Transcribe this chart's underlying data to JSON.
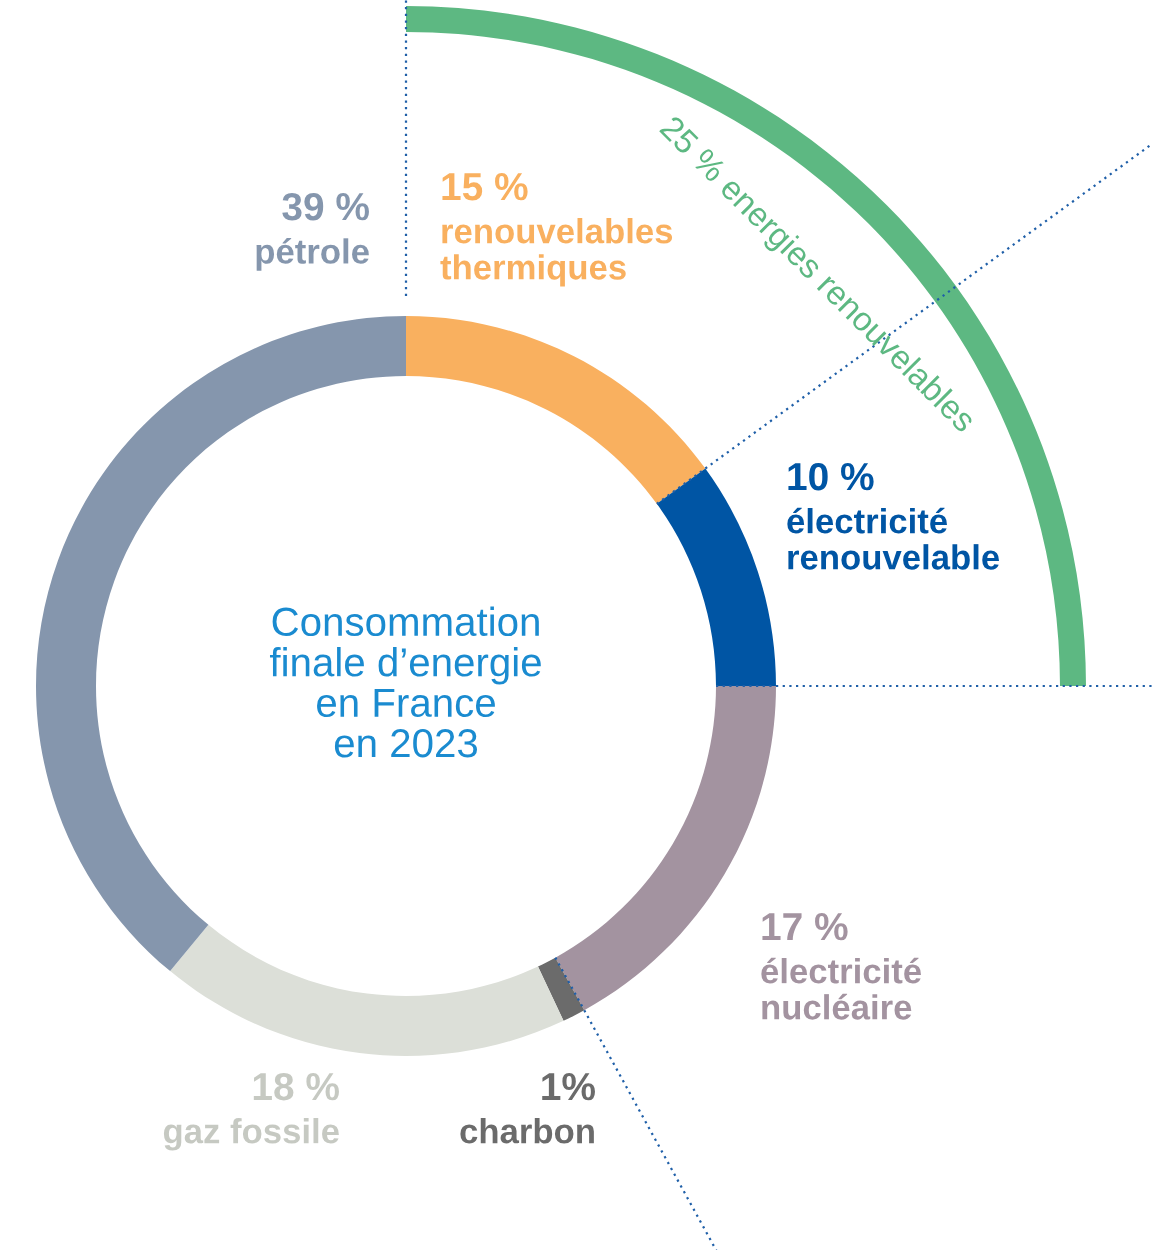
{
  "chart_data": {
    "type": "donut",
    "title": "Consommation\nfinale d’energie\nen France\nen 2023",
    "categories": [
      "renouvelables\nthermiques",
      "électricité\nrenouvelable",
      "électricité\nnucléaire",
      "charbon",
      "gaz fossile",
      "pétrole"
    ],
    "values": [
      15,
      10,
      17,
      1,
      18,
      39
    ],
    "colors": [
      "#f9b05f",
      "#0055a4",
      "#a393a0",
      "#6b6b6b",
      "#dcdfd8",
      "#8596ad"
    ],
    "value_labels": [
      "15 %",
      "10 %",
      "17 %",
      "1%",
      "18 %",
      "39 %"
    ],
    "annotations": [
      "25 % energies renouvelables"
    ]
  }
}
